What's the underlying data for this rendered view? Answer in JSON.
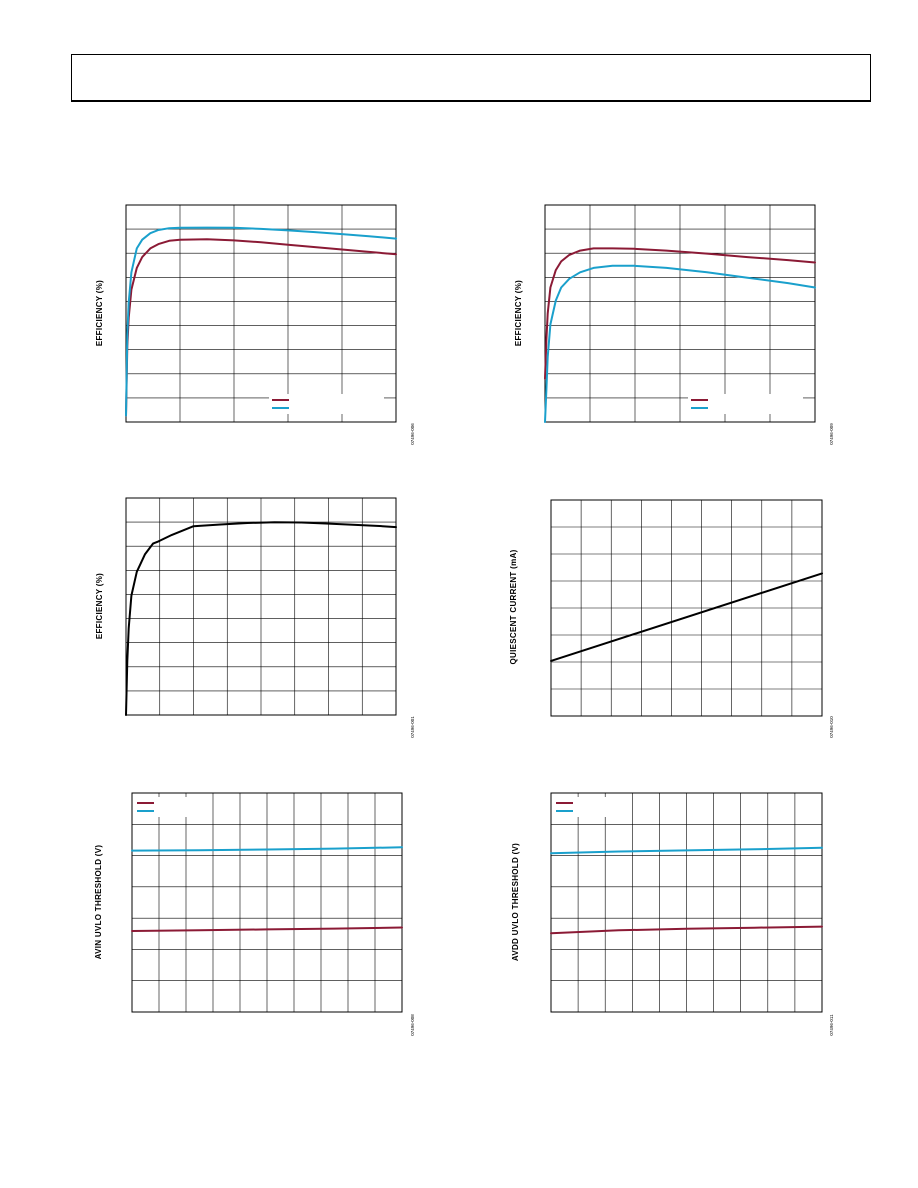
{
  "colors": {
    "series_red": "#8b1a35",
    "series_blue": "#1aa0cc",
    "series_black": "#000000",
    "grid": "#000000"
  },
  "chart_data": [
    {
      "type": "line",
      "ylabel": "EFFICIENCY (%)",
      "figure_id": "07496-006",
      "grid": true,
      "legend": "bottom-right",
      "ncols": 5,
      "nrows": 9,
      "xlim": [
        0,
        1
      ],
      "ylim": [
        0,
        1
      ],
      "series": [
        {
          "color": "red",
          "x": [
            0,
            0.005,
            0.01,
            0.02,
            0.04,
            0.06,
            0.09,
            0.12,
            0.16,
            0.2,
            0.3,
            0.4,
            0.5,
            0.6,
            0.7,
            0.8,
            0.9,
            1.0
          ],
          "y": [
            0.03,
            0.35,
            0.48,
            0.61,
            0.71,
            0.76,
            0.8,
            0.82,
            0.835,
            0.84,
            0.842,
            0.837,
            0.828,
            0.817,
            0.806,
            0.795,
            0.784,
            0.773
          ]
        },
        {
          "color": "blue",
          "x": [
            0,
            0.005,
            0.01,
            0.02,
            0.04,
            0.06,
            0.09,
            0.12,
            0.16,
            0.2,
            0.3,
            0.4,
            0.5,
            0.6,
            0.7,
            0.8,
            0.9,
            1.0
          ],
          "y": [
            0.03,
            0.4,
            0.55,
            0.69,
            0.8,
            0.84,
            0.87,
            0.885,
            0.893,
            0.895,
            0.896,
            0.895,
            0.89,
            0.883,
            0.875,
            0.866,
            0.856,
            0.845
          ]
        }
      ]
    },
    {
      "type": "line",
      "ylabel": "EFFICIENCY (%)",
      "figure_id": "07496-009",
      "grid": true,
      "legend": "bottom-right",
      "ncols": 6,
      "nrows": 9,
      "xlim": [
        0,
        1
      ],
      "ylim": [
        0,
        1
      ],
      "series": [
        {
          "color": "red",
          "x": [
            0,
            0.005,
            0.01,
            0.02,
            0.04,
            0.06,
            0.09,
            0.13,
            0.18,
            0.25,
            0.33,
            0.45,
            0.6,
            0.75,
            0.9,
            1.0
          ],
          "y": [
            0.2,
            0.38,
            0.5,
            0.62,
            0.7,
            0.74,
            0.77,
            0.79,
            0.8,
            0.8,
            0.798,
            0.79,
            0.776,
            0.76,
            0.746,
            0.735
          ]
        },
        {
          "color": "blue",
          "x": [
            0,
            0.005,
            0.01,
            0.02,
            0.04,
            0.06,
            0.09,
            0.13,
            0.18,
            0.25,
            0.33,
            0.45,
            0.6,
            0.75,
            0.9,
            1.0
          ],
          "y": [
            0.0,
            0.15,
            0.3,
            0.45,
            0.56,
            0.62,
            0.66,
            0.69,
            0.71,
            0.72,
            0.72,
            0.71,
            0.69,
            0.665,
            0.64,
            0.62
          ]
        }
      ]
    },
    {
      "type": "line",
      "ylabel": "EFFICIENCY (%)",
      "figure_id": "07496-001",
      "grid": true,
      "ncols": 8,
      "nrows": 9,
      "xlim": [
        0,
        1
      ],
      "ylim": [
        0,
        1
      ],
      "series": [
        {
          "color": "black",
          "x": [
            0,
            0.005,
            0.01,
            0.02,
            0.04,
            0.07,
            0.1,
            0.12,
            0.17,
            0.25,
            0.35,
            0.45,
            0.55,
            0.65,
            0.75,
            0.85,
            0.95,
            1.0
          ],
          "y": [
            0.0,
            0.25,
            0.4,
            0.55,
            0.66,
            0.74,
            0.79,
            0.8,
            0.83,
            0.87,
            0.878,
            0.885,
            0.888,
            0.887,
            0.882,
            0.876,
            0.87,
            0.866
          ]
        }
      ]
    },
    {
      "type": "line",
      "ylabel": "QUIESCENT CURRENT (mA)",
      "figure_id": "07496-010",
      "grid": true,
      "ncols": 9,
      "nrows": 8,
      "xlim": [
        0,
        1
      ],
      "ylim": [
        0,
        1
      ],
      "series": [
        {
          "color": "black",
          "x": [
            0,
            1
          ],
          "y": [
            0.255,
            0.66
          ]
        }
      ]
    },
    {
      "type": "line",
      "ylabel": "AVIN UVLO THRESHOLD (V)",
      "figure_id": "07496-008",
      "grid": true,
      "legend": "top-left",
      "ncols": 10,
      "nrows": 7,
      "xlim": [
        0,
        1
      ],
      "ylim": [
        0,
        1
      ],
      "series": [
        {
          "color": "red",
          "x": [
            0,
            0.25,
            0.5,
            0.75,
            1.0
          ],
          "y": [
            0.37,
            0.373,
            0.377,
            0.381,
            0.386
          ]
        },
        {
          "color": "blue",
          "x": [
            0,
            0.25,
            0.5,
            0.75,
            1.0
          ],
          "y": [
            0.737,
            0.739,
            0.742,
            0.746,
            0.752
          ]
        }
      ]
    },
    {
      "type": "line",
      "ylabel": "AVDD UVLO THRESHOLD (V)",
      "figure_id": "07496-011",
      "grid": true,
      "legend": "top-left",
      "ncols": 10,
      "nrows": 7,
      "xlim": [
        0,
        1
      ],
      "ylim": [
        0,
        1
      ],
      "series": [
        {
          "color": "red",
          "x": [
            0,
            0.25,
            0.5,
            0.75,
            1.0
          ],
          "y": [
            0.36,
            0.373,
            0.38,
            0.385,
            0.39
          ]
        },
        {
          "color": "blue",
          "x": [
            0,
            0.25,
            0.5,
            0.75,
            1.0
          ],
          "y": [
            0.725,
            0.733,
            0.738,
            0.743,
            0.75
          ]
        }
      ]
    }
  ]
}
